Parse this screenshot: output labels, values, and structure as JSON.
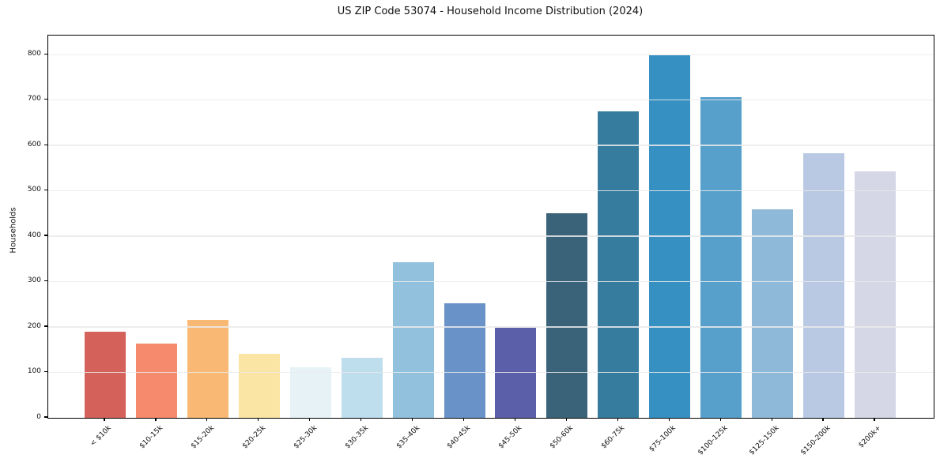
{
  "figure": {
    "background_color": "#ffffff",
    "plot_border_color": "#000000"
  },
  "chart_data": {
    "type": "bar",
    "title": "US ZIP Code 53074 - Household Income Distribution (2024)",
    "xlabel": "",
    "ylabel": "Households",
    "categories": [
      "< $10k",
      "$10-15k",
      "$15-20k",
      "$20-25k",
      "$25-30k",
      "$30-35k",
      "$35-40k",
      "$40-45k",
      "$45-50k",
      "$50-60k",
      "$60-75k",
      "$75-100k",
      "$100-125k",
      "$125-150k",
      "$150-200k",
      "$200k+"
    ],
    "values": [
      189,
      163,
      215,
      141,
      112,
      132,
      342,
      253,
      199,
      451,
      675,
      799,
      706,
      460,
      582,
      542
    ],
    "bar_colors": [
      "#d4625a",
      "#f58a6c",
      "#f9b873",
      "#fbe5a4",
      "#e7f2f6",
      "#bedded",
      "#92c1de",
      "#6892c8",
      "#5b5fa9",
      "#3a6278",
      "#357c9e",
      "#3690c2",
      "#56a0cb",
      "#8fb9d9",
      "#bac9e3",
      "#d5d7e6"
    ],
    "ylim": [
      0,
      842
    ],
    "yticks": [
      0,
      100,
      200,
      300,
      400,
      500,
      600,
      700,
      800
    ],
    "grid": true,
    "gridline_color": "#eaeaea",
    "legend_position": "none",
    "xtick_rotation_deg": 45
  }
}
